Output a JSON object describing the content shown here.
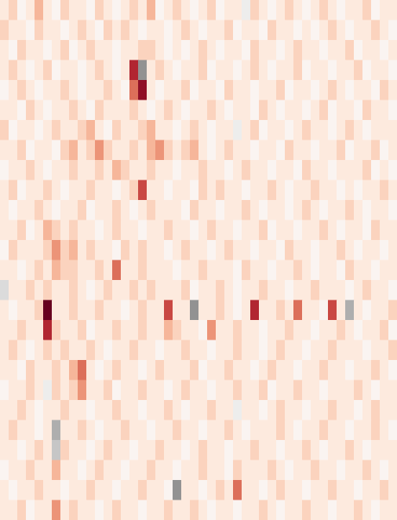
{
  "chart_data": {
    "type": "heatmap",
    "tick_labels": false,
    "value_range": [
      -9,
      9
    ],
    "cells": [
      [
        1,
        2,
        0,
        1,
        3,
        1,
        0,
        2,
        1,
        1,
        0,
        2,
        1,
        0,
        1,
        2,
        1,
        3,
        0,
        1,
        2,
        1,
        0,
        1,
        2,
        0,
        1,
        1,
        -1,
        2,
        1,
        0,
        1,
        2,
        1,
        0,
        1,
        2,
        1,
        0,
        1,
        1,
        2,
        0,
        1,
        1
      ],
      [
        2,
        1,
        1,
        0,
        2,
        1,
        1,
        0,
        1,
        2,
        1,
        0,
        2,
        1,
        2,
        1,
        0,
        1,
        1,
        0,
        1,
        2,
        1,
        0,
        1,
        1,
        2,
        0,
        1,
        1,
        0,
        2,
        1,
        1,
        0,
        1,
        0,
        1,
        2,
        1,
        0,
        1,
        1,
        2,
        1,
        0
      ],
      [
        1,
        0,
        2,
        1,
        1,
        0,
        1,
        2,
        0,
        1,
        2,
        1,
        1,
        0,
        1,
        1,
        2,
        2,
        1,
        0,
        1,
        0,
        1,
        2,
        1,
        0,
        1,
        1,
        0,
        2,
        1,
        1,
        0,
        1,
        2,
        1,
        1,
        0,
        1,
        1,
        2,
        0,
        1,
        1,
        0,
        1
      ],
      [
        1,
        2,
        1,
        0,
        1,
        2,
        0,
        1,
        1,
        0,
        1,
        2,
        1,
        0,
        1,
        7,
        -5,
        1,
        2,
        1,
        0,
        1,
        1,
        2,
        0,
        1,
        1,
        0,
        1,
        2,
        1,
        0,
        1,
        1,
        2,
        0,
        1,
        1,
        0,
        1,
        1,
        2,
        0,
        1,
        1,
        0
      ],
      [
        0,
        1,
        2,
        1,
        0,
        1,
        1,
        2,
        1,
        0,
        1,
        1,
        2,
        1,
        0,
        5,
        8,
        1,
        0,
        1,
        1,
        2,
        0,
        1,
        1,
        0,
        2,
        1,
        1,
        0,
        1,
        1,
        2,
        0,
        1,
        1,
        0,
        1,
        2,
        1,
        0,
        1,
        1,
        0,
        2,
        1
      ],
      [
        1,
        1,
        0,
        2,
        1,
        0,
        1,
        1,
        2,
        1,
        0,
        2,
        1,
        1,
        1,
        2,
        1,
        0,
        1,
        2,
        1,
        0,
        1,
        1,
        2,
        1,
        0,
        1,
        1,
        0,
        2,
        1,
        0,
        1,
        1,
        0,
        1,
        2,
        0,
        1,
        1,
        0,
        2,
        1,
        1,
        0
      ],
      [
        2,
        0,
        1,
        1,
        0,
        1,
        2,
        1,
        1,
        2,
        3,
        1,
        0,
        2,
        1,
        1,
        2,
        3,
        1,
        1,
        0,
        1,
        2,
        1,
        0,
        1,
        1,
        -1,
        1,
        2,
        0,
        1,
        1,
        0,
        1,
        2,
        1,
        1,
        0,
        1,
        2,
        1,
        0,
        1,
        1,
        1
      ],
      [
        1,
        1,
        2,
        0,
        1,
        1,
        0,
        2,
        3,
        1,
        2,
        4,
        2,
        1,
        1,
        2,
        1,
        3,
        4,
        2,
        1,
        2,
        3,
        1,
        0,
        1,
        2,
        1,
        1,
        0,
        1,
        1,
        0,
        2,
        1,
        1,
        0,
        1,
        1,
        2,
        0,
        1,
        1,
        2,
        0,
        1
      ],
      [
        0,
        1,
        1,
        2,
        1,
        0,
        1,
        1,
        2,
        1,
        1,
        2,
        1,
        3,
        2,
        1,
        1,
        2,
        1,
        1,
        0,
        1,
        1,
        2,
        1,
        1,
        0,
        1,
        2,
        1,
        1,
        0,
        1,
        1,
        0,
        2,
        1,
        1,
        0,
        1,
        1,
        1,
        2,
        0,
        1,
        0
      ],
      [
        1,
        2,
        0,
        1,
        1,
        2,
        1,
        0,
        1,
        1,
        2,
        1,
        1,
        0,
        1,
        2,
        6,
        1,
        1,
        0,
        1,
        1,
        0,
        2,
        1,
        2,
        1,
        1,
        0,
        1,
        1,
        2,
        1,
        0,
        1,
        1,
        2,
        1,
        1,
        0,
        1,
        0,
        1,
        1,
        2,
        1
      ],
      [
        1,
        0,
        1,
        1,
        2,
        1,
        0,
        1,
        1,
        2,
        0,
        1,
        1,
        2,
        1,
        0,
        1,
        2,
        1,
        1,
        1,
        0,
        2,
        1,
        1,
        0,
        1,
        1,
        2,
        1,
        0,
        1,
        1,
        0,
        1,
        2,
        1,
        0,
        1,
        1,
        2,
        1,
        0,
        1,
        1,
        0
      ],
      [
        1,
        1,
        2,
        0,
        1,
        3,
        2,
        1,
        2,
        1,
        1,
        0,
        1,
        2,
        1,
        1,
        0,
        1,
        1,
        2,
        1,
        1,
        0,
        1,
        2,
        1,
        1,
        0,
        1,
        1,
        2,
        0,
        1,
        1,
        0,
        1,
        1,
        2,
        1,
        0,
        1,
        1,
        0,
        2,
        1,
        1
      ],
      [
        0,
        2,
        1,
        1,
        1,
        2,
        4,
        2,
        3,
        1,
        2,
        1,
        1,
        0,
        2,
        1,
        2,
        1,
        1,
        0,
        1,
        2,
        1,
        1,
        0,
        1,
        2,
        1,
        1,
        0,
        1,
        1,
        0,
        2,
        1,
        1,
        0,
        1,
        1,
        2,
        1,
        0,
        1,
        1,
        0,
        1
      ],
      [
        1,
        1,
        0,
        1,
        2,
        1,
        3,
        2,
        2,
        1,
        1,
        2,
        1,
        5,
        1,
        1,
        2,
        1,
        1,
        1,
        0,
        1,
        1,
        2,
        1,
        1,
        1,
        0,
        2,
        1,
        1,
        0,
        1,
        1,
        2,
        1,
        0,
        1,
        1,
        0,
        2,
        1,
        1,
        0,
        1,
        1
      ],
      [
        -2,
        1,
        1,
        2,
        1,
        2,
        1,
        1,
        2,
        1,
        0,
        1,
        2,
        1,
        1,
        2,
        1,
        2,
        1,
        1,
        1,
        2,
        0,
        1,
        1,
        2,
        1,
        0,
        1,
        1,
        2,
        1,
        1,
        0,
        1,
        1,
        2,
        1,
        1,
        1,
        0,
        1,
        2,
        1,
        1,
        0
      ],
      [
        1,
        0,
        1,
        1,
        2,
        9,
        1,
        1,
        2,
        1,
        1,
        2,
        1,
        1,
        0,
        1,
        2,
        1,
        1,
        6,
        1,
        1,
        -5,
        1,
        1,
        2,
        1,
        0,
        1,
        7,
        1,
        1,
        2,
        1,
        5,
        1,
        1,
        0,
        6,
        1,
        -4,
        1,
        0,
        1,
        1,
        2
      ],
      [
        1,
        1,
        2,
        1,
        1,
        7,
        2,
        1,
        1,
        2,
        0,
        1,
        1,
        2,
        1,
        1,
        2,
        1,
        1,
        3,
        2,
        1,
        1,
        0,
        4,
        1,
        1,
        2,
        1,
        1,
        0,
        1,
        1,
        2,
        1,
        1,
        0,
        1,
        1,
        2,
        1,
        0,
        1,
        1,
        2,
        0
      ],
      [
        1,
        2,
        1,
        0,
        1,
        2,
        1,
        2,
        1,
        1,
        2,
        1,
        0,
        1,
        1,
        2,
        1,
        1,
        0,
        1,
        1,
        2,
        1,
        1,
        0,
        1,
        1,
        2,
        1,
        1,
        0,
        1,
        2,
        1,
        1,
        0,
        1,
        1,
        2,
        1,
        1,
        1,
        0,
        1,
        1,
        2
      ],
      [
        1,
        1,
        0,
        2,
        1,
        1,
        2,
        1,
        3,
        5,
        1,
        0,
        1,
        2,
        1,
        1,
        0,
        1,
        2,
        1,
        1,
        1,
        2,
        0,
        1,
        1,
        2,
        1,
        1,
        0,
        1,
        2,
        1,
        1,
        0,
        1,
        1,
        2,
        1,
        1,
        0,
        1,
        1,
        2,
        1,
        0
      ],
      [
        0,
        1,
        1,
        2,
        1,
        -1,
        2,
        1,
        2,
        4,
        1,
        1,
        2,
        0,
        1,
        1,
        2,
        1,
        1,
        0,
        1,
        2,
        1,
        1,
        0,
        1,
        1,
        2,
        1,
        1,
        2,
        0,
        1,
        1,
        2,
        1,
        1,
        0,
        1,
        1,
        1,
        2,
        1,
        0,
        1,
        1
      ],
      [
        1,
        1,
        2,
        1,
        0,
        1,
        1,
        2,
        1,
        1,
        0,
        1,
        1,
        2,
        1,
        1,
        0,
        1,
        1,
        2,
        1,
        0,
        1,
        1,
        2,
        1,
        1,
        -1,
        1,
        1,
        0,
        1,
        2,
        1,
        1,
        0,
        1,
        1,
        2,
        1,
        1,
        0,
        1,
        2,
        1,
        1
      ],
      [
        1,
        2,
        1,
        1,
        0,
        1,
        -4,
        1,
        1,
        2,
        1,
        0,
        1,
        1,
        2,
        1,
        1,
        0,
        1,
        1,
        2,
        1,
        1,
        0,
        1,
        1,
        2,
        1,
        0,
        1,
        1,
        1,
        2,
        1,
        0,
        1,
        1,
        2,
        1,
        1,
        0,
        1,
        1,
        2,
        1,
        0
      ],
      [
        1,
        1,
        0,
        1,
        2,
        1,
        -3,
        2,
        1,
        1,
        0,
        1,
        2,
        1,
        1,
        0,
        1,
        1,
        2,
        1,
        1,
        0,
        1,
        2,
        1,
        1,
        0,
        1,
        1,
        2,
        1,
        1,
        0,
        1,
        1,
        2,
        1,
        0,
        1,
        1,
        2,
        1,
        0,
        1,
        1,
        1
      ],
      [
        0,
        1,
        1,
        2,
        1,
        1,
        3,
        1,
        1,
        0,
        1,
        2,
        1,
        1,
        0,
        1,
        1,
        2,
        1,
        1,
        0,
        1,
        1,
        2,
        1,
        1,
        0,
        2,
        1,
        1,
        1,
        2,
        1,
        0,
        1,
        1,
        2,
        1,
        1,
        0,
        1,
        1,
        2,
        1,
        0,
        1
      ],
      [
        1,
        0,
        1,
        1,
        2,
        1,
        1,
        0,
        1,
        1,
        2,
        1,
        1,
        0,
        1,
        1,
        2,
        1,
        1,
        0,
        -5,
        1,
        1,
        0,
        1,
        2,
        1,
        5,
        1,
        1,
        0,
        1,
        2,
        1,
        1,
        0,
        1,
        1,
        2,
        1,
        1,
        0,
        1,
        1,
        2,
        1
      ],
      [
        1,
        1,
        2,
        0,
        1,
        1,
        4,
        1,
        2,
        1,
        1,
        0,
        1,
        2,
        1,
        1,
        0,
        1,
        1,
        2,
        1,
        1,
        2,
        1,
        0,
        1,
        1,
        0,
        1,
        1,
        2,
        1,
        0,
        1,
        1,
        2,
        1,
        1,
        0,
        1,
        1,
        2,
        1,
        0,
        1,
        1
      ]
    ]
  }
}
